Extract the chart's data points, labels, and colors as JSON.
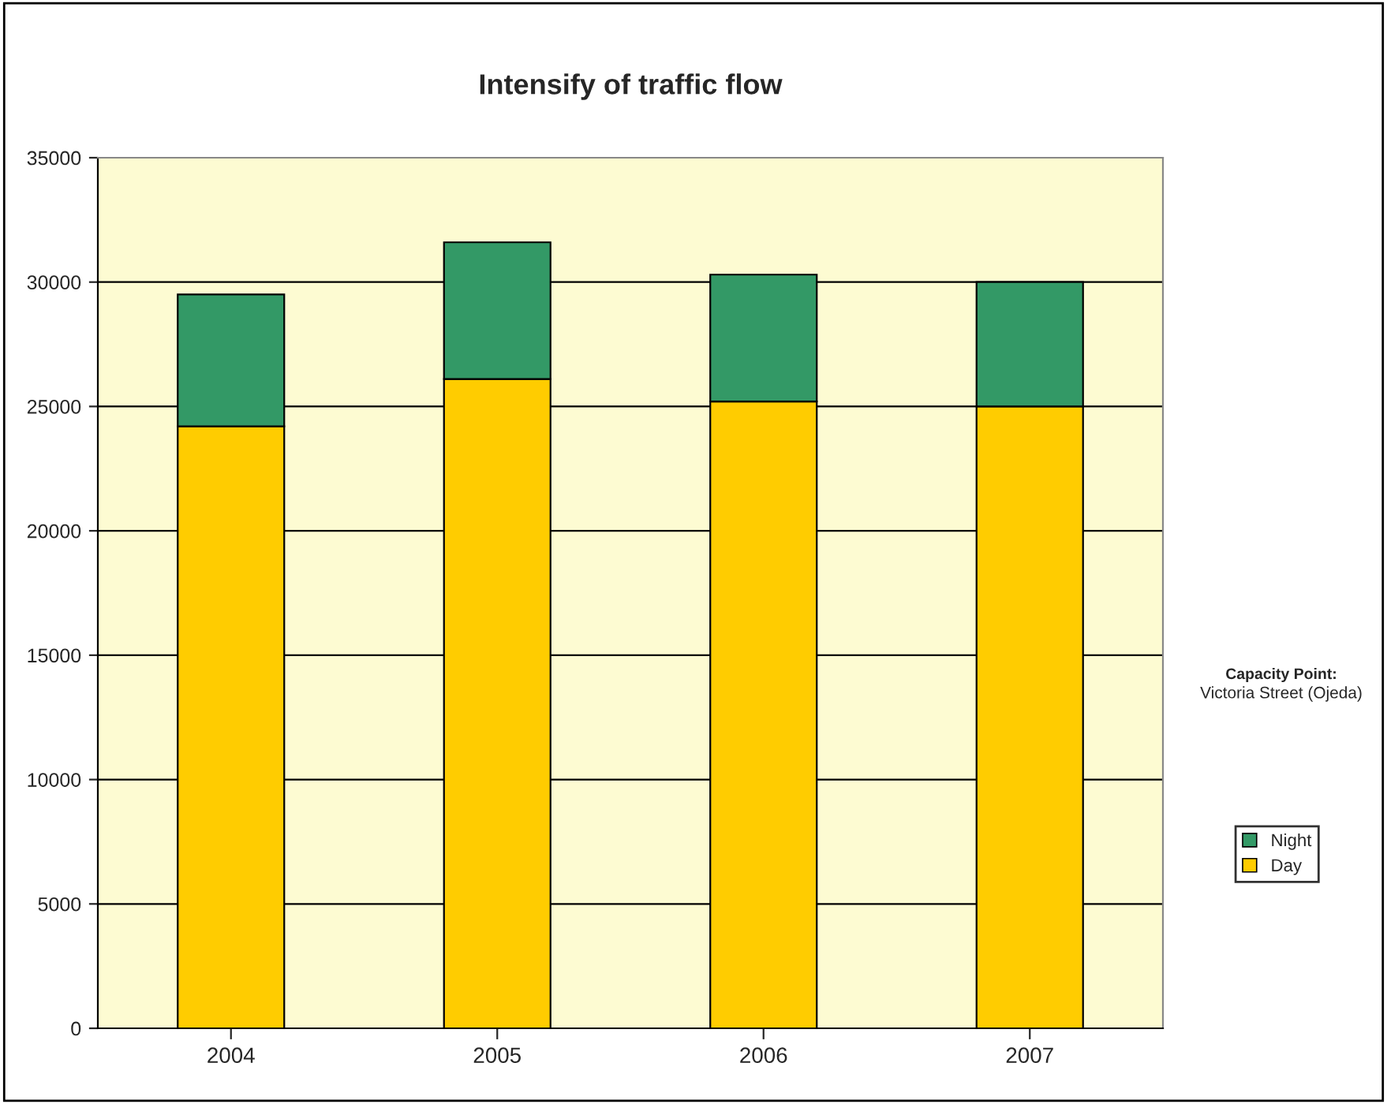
{
  "chart_data": {
    "type": "bar",
    "title": "Intensify of traffic flow",
    "categories": [
      "2004",
      "2005",
      "2006",
      "2007"
    ],
    "stacked": true,
    "series": [
      {
        "name": "Day",
        "color": "#ffcc00",
        "values": [
          24200,
          26100,
          25200,
          25000
        ]
      },
      {
        "name": "Night",
        "color": "#339966",
        "values": [
          5300,
          5500,
          5100,
          5000
        ]
      }
    ],
    "ylim": [
      0,
      35000
    ],
    "yticks": [
      0,
      5000,
      10000,
      15000,
      20000,
      25000,
      30000,
      35000
    ],
    "grid": "y",
    "legend": "right",
    "annotations": [
      "Capacity Point:",
      "Victoria Street (Ojeda)"
    ]
  }
}
